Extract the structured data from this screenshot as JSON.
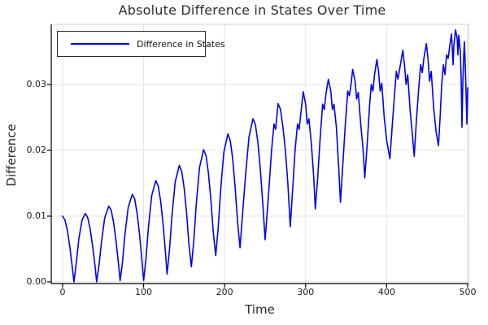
{
  "chart_data": {
    "type": "line",
    "title": "Absolute Difference in States Over Time",
    "xlabel": "Time",
    "ylabel": "Difference",
    "legend": {
      "entries": [
        "Difference in States"
      ],
      "position": "top-left",
      "border": true
    },
    "grid": true,
    "xticks": [
      0,
      100,
      200,
      300,
      400,
      500
    ],
    "xtick_labels": [
      "0",
      "100",
      "200",
      "300",
      "400",
      "500"
    ],
    "yticks": [
      0.0,
      0.01,
      0.02,
      0.03
    ],
    "ytick_labels": [
      "0.00",
      "0.01",
      "0.02",
      "0.03"
    ],
    "xlim": [
      -14,
      501
    ],
    "ylim": [
      -0.00025,
      0.03914
    ],
    "colors": {
      "line": "#0000ee",
      "grid": "#e5e5e5",
      "spine": "#000000",
      "title": "#2d2d2d"
    },
    "series": [
      {
        "name": "Difference in States",
        "color": "#0000ee",
        "points": [
          [
            0,
            0.01
          ],
          [
            3,
            0.0094
          ],
          [
            6,
            0.0078
          ],
          [
            9,
            0.0053
          ],
          [
            12,
            0.0022
          ],
          [
            14,
            0.0
          ],
          [
            17,
            0.003
          ],
          [
            20,
            0.0065
          ],
          [
            24,
            0.0094
          ],
          [
            28,
            0.0104
          ],
          [
            31,
            0.0098
          ],
          [
            34,
            0.0081
          ],
          [
            37,
            0.0055
          ],
          [
            40,
            0.0025
          ],
          [
            42,
            0.0
          ],
          [
            45,
            0.0026
          ],
          [
            48,
            0.0061
          ],
          [
            52,
            0.0097
          ],
          [
            57,
            0.0115
          ],
          [
            60,
            0.0109
          ],
          [
            63,
            0.009
          ],
          [
            66,
            0.0062
          ],
          [
            69,
            0.0027
          ],
          [
            71,
            0.0002
          ],
          [
            74,
            0.0031
          ],
          [
            77,
            0.0072
          ],
          [
            81,
            0.0113
          ],
          [
            86,
            0.0133
          ],
          [
            89,
            0.0126
          ],
          [
            92,
            0.0104
          ],
          [
            95,
            0.0072
          ],
          [
            98,
            0.0031
          ],
          [
            100,
            0.0002
          ],
          [
            103,
            0.0036
          ],
          [
            106,
            0.0083
          ],
          [
            110,
            0.0131
          ],
          [
            115,
            0.0154
          ],
          [
            118,
            0.0146
          ],
          [
            121,
            0.0123
          ],
          [
            124,
            0.0088
          ],
          [
            127,
            0.0044
          ],
          [
            129,
            0.0012
          ],
          [
            132,
            0.0049
          ],
          [
            135,
            0.01
          ],
          [
            139,
            0.0152
          ],
          [
            144,
            0.0177
          ],
          [
            147,
            0.0168
          ],
          [
            150,
            0.0143
          ],
          [
            153,
            0.0105
          ],
          [
            156,
            0.0057
          ],
          [
            159,
            0.0023
          ],
          [
            162,
            0.0063
          ],
          [
            165,
            0.0118
          ],
          [
            169,
            0.0174
          ],
          [
            174,
            0.0201
          ],
          [
            177,
            0.0192
          ],
          [
            180,
            0.0166
          ],
          [
            183,
            0.0126
          ],
          [
            186,
            0.0076
          ],
          [
            189,
            0.004
          ],
          [
            192,
            0.0081
          ],
          [
            195,
            0.0138
          ],
          [
            199,
            0.0197
          ],
          [
            204,
            0.0225
          ],
          [
            207,
            0.0215
          ],
          [
            210,
            0.0187
          ],
          [
            213,
            0.0144
          ],
          [
            216,
            0.0091
          ],
          [
            219,
            0.0052
          ],
          [
            222,
            0.0101
          ],
          [
            226,
            0.0165
          ],
          [
            230,
            0.022
          ],
          [
            235,
            0.0248
          ],
          [
            238,
            0.0239
          ],
          [
            241,
            0.0213
          ],
          [
            244,
            0.0172
          ],
          [
            247,
            0.0121
          ],
          [
            250,
            0.0064
          ],
          [
            254,
            0.013
          ],
          [
            258,
            0.02
          ],
          [
            261,
            0.024
          ],
          [
            263,
            0.0232
          ],
          [
            266,
            0.0271
          ],
          [
            269,
            0.0262
          ],
          [
            272,
            0.0235
          ],
          [
            275,
            0.02
          ],
          [
            278,
            0.015
          ],
          [
            281,
            0.0084
          ],
          [
            284,
            0.014
          ],
          [
            287,
            0.02
          ],
          [
            290,
            0.024
          ],
          [
            292,
            0.0232
          ],
          [
            294,
            0.0255
          ],
          [
            297,
            0.0289
          ],
          [
            300,
            0.027
          ],
          [
            302,
            0.024
          ],
          [
            304,
            0.0248
          ],
          [
            307,
            0.021
          ],
          [
            310,
            0.016
          ],
          [
            312,
            0.0111
          ],
          [
            315,
            0.016
          ],
          [
            318,
            0.022
          ],
          [
            321,
            0.027
          ],
          [
            323,
            0.0262
          ],
          [
            325,
            0.0285
          ],
          [
            328,
            0.0308
          ],
          [
            331,
            0.029
          ],
          [
            333,
            0.0262
          ],
          [
            335,
            0.027
          ],
          [
            338,
            0.0235
          ],
          [
            341,
            0.017
          ],
          [
            343,
            0.0121
          ],
          [
            346,
            0.018
          ],
          [
            349,
            0.024
          ],
          [
            352,
            0.029
          ],
          [
            354,
            0.0283
          ],
          [
            356,
            0.03
          ],
          [
            358,
            0.0323
          ],
          [
            361,
            0.0305
          ],
          [
            363,
            0.0278
          ],
          [
            365,
            0.0288
          ],
          [
            368,
            0.024
          ],
          [
            371,
            0.02
          ],
          [
            373,
            0.0158
          ],
          [
            376,
            0.021
          ],
          [
            379,
            0.027
          ],
          [
            381,
            0.03
          ],
          [
            383,
            0.029
          ],
          [
            385,
            0.0315
          ],
          [
            388,
            0.0338
          ],
          [
            390,
            0.032
          ],
          [
            392,
            0.029
          ],
          [
            394,
            0.0302
          ],
          [
            397,
            0.025
          ],
          [
            400,
            0.0215
          ],
          [
            404,
            0.0187
          ],
          [
            407,
            0.024
          ],
          [
            410,
            0.029
          ],
          [
            412,
            0.032
          ],
          [
            414,
            0.0308
          ],
          [
            417,
            0.033
          ],
          [
            420,
            0.0352
          ],
          [
            422,
            0.033
          ],
          [
            424,
            0.03
          ],
          [
            426,
            0.0315
          ],
          [
            429,
            0.026
          ],
          [
            432,
            0.022
          ],
          [
            434,
            0.0191
          ],
          [
            437,
            0.025
          ],
          [
            440,
            0.03
          ],
          [
            442,
            0.033
          ],
          [
            444,
            0.0318
          ],
          [
            446,
            0.034
          ],
          [
            449,
            0.0362
          ],
          [
            451,
            0.034
          ],
          [
            453,
            0.0305
          ],
          [
            455,
            0.032
          ],
          [
            458,
            0.0265
          ],
          [
            461,
            0.0228
          ],
          [
            464,
            0.0207
          ],
          [
            466,
            0.025
          ],
          [
            468,
            0.03
          ],
          [
            470,
            0.033
          ],
          [
            472,
            0.0315
          ],
          [
            474,
            0.0345
          ],
          [
            476,
            0.034
          ],
          [
            478,
            0.036
          ],
          [
            480,
            0.0377
          ],
          [
            481,
            0.0355
          ],
          [
            482,
            0.033
          ],
          [
            483,
            0.036
          ],
          [
            485,
            0.0383
          ],
          [
            487,
            0.037
          ],
          [
            488,
            0.0345
          ],
          [
            489,
            0.0375
          ],
          [
            491,
            0.035
          ],
          [
            492,
            0.031
          ],
          [
            493,
            0.0235
          ],
          [
            494,
            0.03
          ],
          [
            495,
            0.034
          ],
          [
            496,
            0.0365
          ],
          [
            497,
            0.033
          ],
          [
            498,
            0.029
          ],
          [
            499,
            0.024
          ],
          [
            500,
            0.0295
          ]
        ]
      }
    ]
  }
}
